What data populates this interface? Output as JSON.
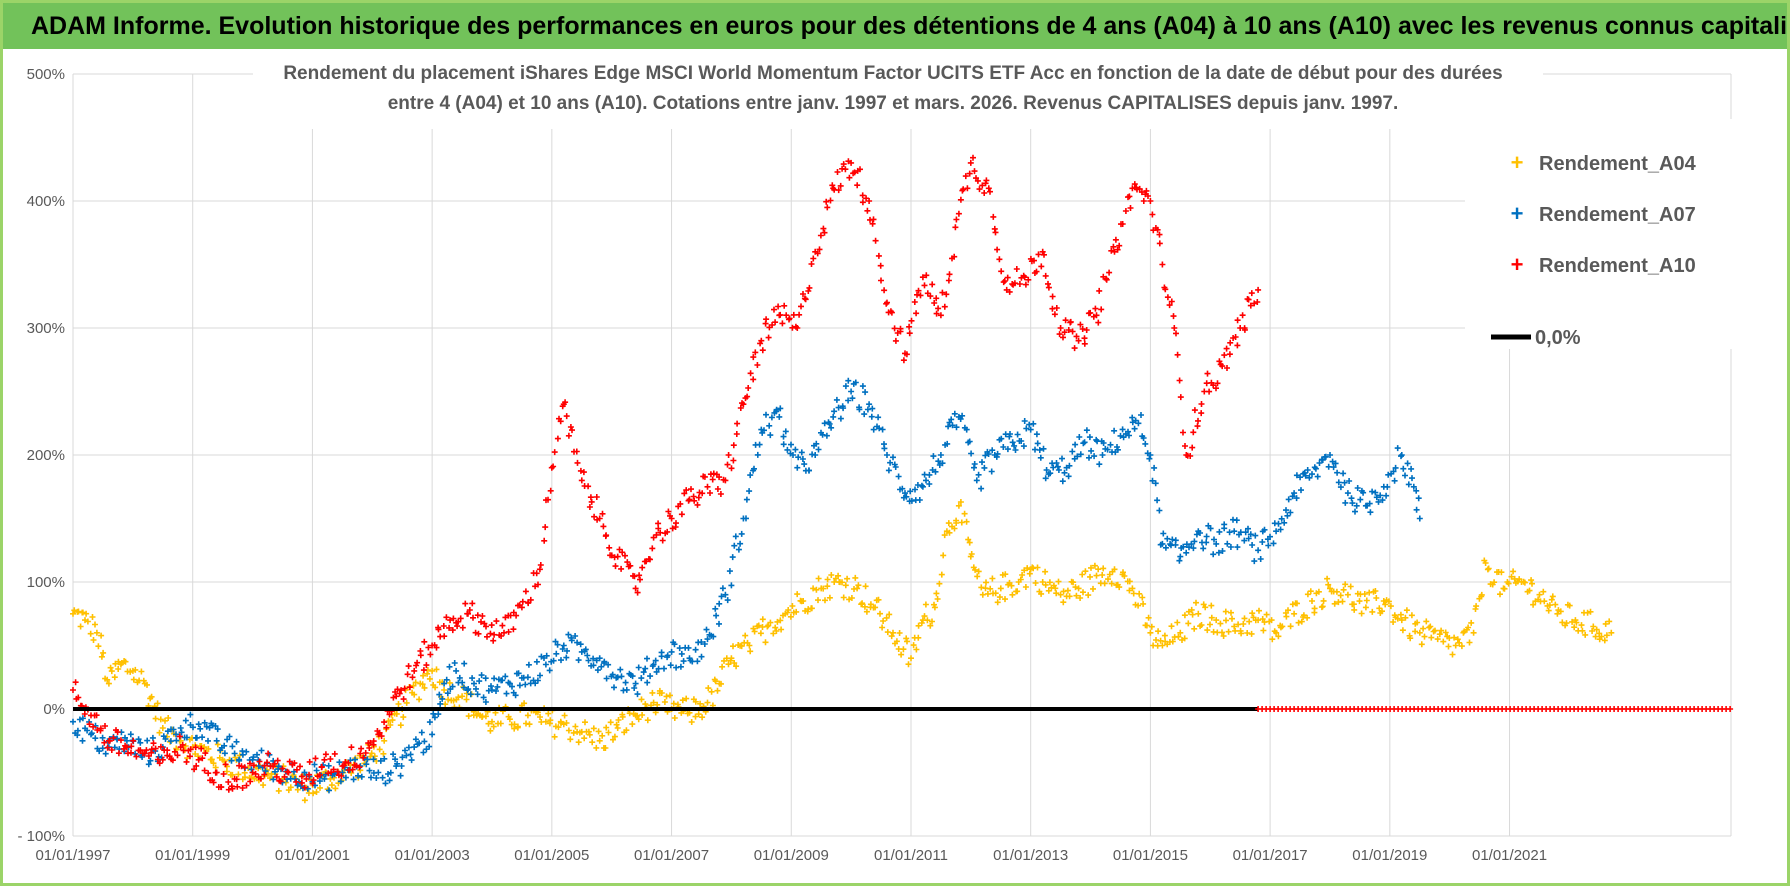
{
  "header": {
    "title": "ADAM Informe. Evolution historique des performances en euros pour des détentions de 4 ans (A04) à 10 ans (A10) avec les revenus connus capitalisés"
  },
  "chart_data": {
    "type": "scatter",
    "title_line1": "Rendement du placement iShares Edge MSCI World Momentum Factor UCITS ETF Acc en fonction de la date de début pour des durées",
    "title_line2": "entre 4 (A04) et 10 ans (A10). Cotations entre janv. 1997 et mars. 2026. Revenus CAPITALISES depuis janv. 1997.",
    "ylim": [
      -100,
      500
    ],
    "xlim": [
      1997.0,
      2024.7
    ],
    "yticks": [
      -100,
      0,
      100,
      200,
      300,
      400,
      500
    ],
    "ytick_labels": [
      "- 100%",
      "0%",
      "100%",
      "200%",
      "300%",
      "400%",
      "500%"
    ],
    "xtick_values": [
      1997,
      1999,
      2001,
      2003,
      2005,
      2007,
      2009,
      2011,
      2013,
      2015,
      2017,
      2019,
      2021
    ],
    "xtick_labels": [
      "01/01/1997",
      "01/01/1999",
      "01/01/2001",
      "01/01/2003",
      "01/01/2005",
      "01/01/2007",
      "01/01/2009",
      "01/01/2011",
      "01/01/2013",
      "01/01/2015",
      "01/01/2017",
      "01/01/2019",
      "01/01/2021"
    ],
    "legend_position": "top-right",
    "series": [
      {
        "name": "Rendement_A04",
        "color": "#ffc000",
        "points": [
          [
            1997.0,
            75
          ],
          [
            1997.2,
            70
          ],
          [
            1997.4,
            60
          ],
          [
            1997.6,
            20
          ],
          [
            1997.8,
            35
          ],
          [
            1998.0,
            30
          ],
          [
            1998.2,
            20
          ],
          [
            1998.5,
            -15
          ],
          [
            1998.8,
            -25
          ],
          [
            1999.0,
            -30
          ],
          [
            1999.5,
            -40
          ],
          [
            2000.0,
            -50
          ],
          [
            2000.5,
            -55
          ],
          [
            2000.9,
            -62
          ],
          [
            2001.3,
            -55
          ],
          [
            2001.6,
            -48
          ],
          [
            2001.9,
            -40
          ],
          [
            2002.2,
            -25
          ],
          [
            2002.5,
            0
          ],
          [
            2002.8,
            20
          ],
          [
            2003.0,
            30
          ],
          [
            2003.2,
            15
          ],
          [
            2003.5,
            10
          ],
          [
            2003.8,
            -5
          ],
          [
            2004.0,
            -10
          ],
          [
            2004.3,
            -8
          ],
          [
            2004.6,
            -5
          ],
          [
            2004.9,
            -10
          ],
          [
            2005.2,
            -12
          ],
          [
            2005.5,
            -18
          ],
          [
            2005.8,
            -25
          ],
          [
            2006.1,
            -15
          ],
          [
            2006.4,
            -5
          ],
          [
            2006.7,
            5
          ],
          [
            2007.0,
            0
          ],
          [
            2007.3,
            -3
          ],
          [
            2007.6,
            5
          ],
          [
            2007.8,
            20
          ],
          [
            2008.0,
            40
          ],
          [
            2008.3,
            50
          ],
          [
            2008.6,
            65
          ],
          [
            2008.9,
            75
          ],
          [
            2009.2,
            85
          ],
          [
            2009.5,
            95
          ],
          [
            2009.8,
            100
          ],
          [
            2010.1,
            95
          ],
          [
            2010.4,
            80
          ],
          [
            2010.7,
            60
          ],
          [
            2011.0,
            40
          ],
          [
            2011.2,
            70
          ],
          [
            2011.4,
            80
          ],
          [
            2011.6,
            140
          ],
          [
            2011.8,
            160
          ],
          [
            2012.0,
            120
          ],
          [
            2012.2,
            90
          ],
          [
            2012.5,
            95
          ],
          [
            2012.8,
            100
          ],
          [
            2013.0,
            110
          ],
          [
            2013.2,
            100
          ],
          [
            2013.5,
            90
          ],
          [
            2013.8,
            95
          ],
          [
            2014.1,
            105
          ],
          [
            2014.4,
            110
          ],
          [
            2014.7,
            95
          ],
          [
            2015.0,
            60
          ],
          [
            2015.2,
            50
          ],
          [
            2015.5,
            60
          ],
          [
            2015.8,
            75
          ],
          [
            2016.1,
            70
          ],
          [
            2016.4,
            65
          ],
          [
            2016.8,
            70
          ],
          [
            2017.1,
            60
          ],
          [
            2017.4,
            75
          ],
          [
            2017.7,
            85
          ],
          [
            2018.0,
            95
          ],
          [
            2018.3,
            90
          ],
          [
            2018.6,
            80
          ],
          [
            2018.9,
            85
          ],
          [
            2019.2,
            70
          ],
          [
            2019.5,
            60
          ],
          [
            2019.8,
            55
          ],
          [
            2020.1,
            50
          ],
          [
            2020.4,
            60
          ],
          [
            2020.6,
            115
          ],
          [
            2020.9,
            95
          ],
          [
            2021.2,
            100
          ],
          [
            2021.5,
            90
          ],
          [
            2021.8,
            75
          ],
          [
            2022.1,
            70
          ],
          [
            2022.4,
            65
          ],
          [
            2022.7,
            60
          ]
        ]
      },
      {
        "name": "Rendement_A07",
        "color": "#0070c0",
        "points": [
          [
            1997.0,
            -10
          ],
          [
            1997.3,
            -20
          ],
          [
            1997.6,
            -30
          ],
          [
            1997.9,
            -25
          ],
          [
            1998.2,
            -35
          ],
          [
            1998.5,
            -30
          ],
          [
            1998.8,
            -15
          ],
          [
            1999.1,
            -12
          ],
          [
            1999.4,
            -25
          ],
          [
            1999.7,
            -35
          ],
          [
            2000.0,
            -40
          ],
          [
            2000.3,
            -45
          ],
          [
            2000.6,
            -50
          ],
          [
            2000.9,
            -52
          ],
          [
            2001.2,
            -55
          ],
          [
            2001.5,
            -50
          ],
          [
            2001.8,
            -45
          ],
          [
            2002.1,
            -50
          ],
          [
            2002.4,
            -45
          ],
          [
            2002.7,
            -30
          ],
          [
            2003.0,
            -20
          ],
          [
            2003.2,
            20
          ],
          [
            2003.4,
            30
          ],
          [
            2003.7,
            20
          ],
          [
            2004.0,
            15
          ],
          [
            2004.3,
            20
          ],
          [
            2004.6,
            25
          ],
          [
            2004.9,
            35
          ],
          [
            2005.2,
            50
          ],
          [
            2005.5,
            45
          ],
          [
            2005.8,
            40
          ],
          [
            2006.1,
            25
          ],
          [
            2006.4,
            20
          ],
          [
            2006.7,
            35
          ],
          [
            2007.0,
            45
          ],
          [
            2007.3,
            40
          ],
          [
            2007.6,
            55
          ],
          [
            2007.9,
            90
          ],
          [
            2008.2,
            150
          ],
          [
            2008.5,
            220
          ],
          [
            2008.8,
            230
          ],
          [
            2009.1,
            190
          ],
          [
            2009.4,
            200
          ],
          [
            2009.7,
            230
          ],
          [
            2010.0,
            250
          ],
          [
            2010.3,
            240
          ],
          [
            2010.6,
            200
          ],
          [
            2010.9,
            170
          ],
          [
            2011.2,
            175
          ],
          [
            2011.5,
            200
          ],
          [
            2011.8,
            230
          ],
          [
            2012.1,
            180
          ],
          [
            2012.4,
            200
          ],
          [
            2012.7,
            210
          ],
          [
            2013.0,
            220
          ],
          [
            2013.3,
            185
          ],
          [
            2013.6,
            190
          ],
          [
            2013.9,
            210
          ],
          [
            2014.2,
            200
          ],
          [
            2014.5,
            215
          ],
          [
            2014.8,
            225
          ],
          [
            2015.0,
            200
          ],
          [
            2015.2,
            130
          ],
          [
            2015.5,
            120
          ],
          [
            2015.8,
            140
          ],
          [
            2016.1,
            130
          ],
          [
            2016.4,
            140
          ],
          [
            2016.8,
            125
          ],
          [
            2017.1,
            140
          ],
          [
            2017.4,
            170
          ],
          [
            2017.7,
            185
          ],
          [
            2018.0,
            200
          ],
          [
            2018.3,
            170
          ],
          [
            2018.6,
            160
          ],
          [
            2018.9,
            175
          ],
          [
            2019.2,
            200
          ],
          [
            2019.4,
            175
          ],
          [
            2019.5,
            150
          ]
        ]
      },
      {
        "name": "Rendement_A10",
        "color": "#ff0000",
        "points": [
          [
            1997.0,
            15
          ],
          [
            1997.3,
            -5
          ],
          [
            1997.6,
            -25
          ],
          [
            1997.9,
            -30
          ],
          [
            1998.2,
            -35
          ],
          [
            1998.5,
            -40
          ],
          [
            1998.8,
            -30
          ],
          [
            1999.1,
            -40
          ],
          [
            1999.4,
            -50
          ],
          [
            1999.7,
            -55
          ],
          [
            2000.0,
            -50
          ],
          [
            2000.3,
            -45
          ],
          [
            2000.6,
            -50
          ],
          [
            2000.9,
            -55
          ],
          [
            2001.2,
            -40
          ],
          [
            2001.5,
            -45
          ],
          [
            2001.8,
            -35
          ],
          [
            2002.1,
            -20
          ],
          [
            2002.4,
            10
          ],
          [
            2002.7,
            30
          ],
          [
            2003.0,
            50
          ],
          [
            2003.3,
            70
          ],
          [
            2003.6,
            75
          ],
          [
            2003.9,
            65
          ],
          [
            2004.2,
            60
          ],
          [
            2004.5,
            80
          ],
          [
            2004.8,
            110
          ],
          [
            2005.0,
            190
          ],
          [
            2005.2,
            240
          ],
          [
            2005.5,
            180
          ],
          [
            2005.8,
            150
          ],
          [
            2006.1,
            120
          ],
          [
            2006.4,
            95
          ],
          [
            2006.7,
            135
          ],
          [
            2007.0,
            150
          ],
          [
            2007.3,
            165
          ],
          [
            2007.6,
            175
          ],
          [
            2007.9,
            180
          ],
          [
            2008.2,
            240
          ],
          [
            2008.5,
            290
          ],
          [
            2008.8,
            310
          ],
          [
            2009.1,
            300
          ],
          [
            2009.4,
            360
          ],
          [
            2009.7,
            410
          ],
          [
            2010.0,
            430
          ],
          [
            2010.3,
            400
          ],
          [
            2010.6,
            320
          ],
          [
            2010.9,
            280
          ],
          [
            2011.2,
            340
          ],
          [
            2011.5,
            310
          ],
          [
            2011.8,
            390
          ],
          [
            2012.0,
            430
          ],
          [
            2012.3,
            410
          ],
          [
            2012.6,
            330
          ],
          [
            2012.9,
            340
          ],
          [
            2013.2,
            360
          ],
          [
            2013.5,
            300
          ],
          [
            2013.8,
            290
          ],
          [
            2014.1,
            310
          ],
          [
            2014.4,
            360
          ],
          [
            2014.7,
            410
          ],
          [
            2015.0,
            400
          ],
          [
            2015.2,
            350
          ],
          [
            2015.4,
            300
          ],
          [
            2015.6,
            200
          ],
          [
            2015.9,
            250
          ],
          [
            2016.2,
            270
          ],
          [
            2016.5,
            300
          ],
          [
            2016.8,
            330
          ]
        ]
      },
      {
        "name": "0,0%",
        "color": "#000000",
        "points": [
          [
            1997.0,
            0
          ],
          [
            2016.8,
            0
          ]
        ]
      }
    ],
    "zero_red_range": [
      2016.8,
      2024.7
    ]
  }
}
